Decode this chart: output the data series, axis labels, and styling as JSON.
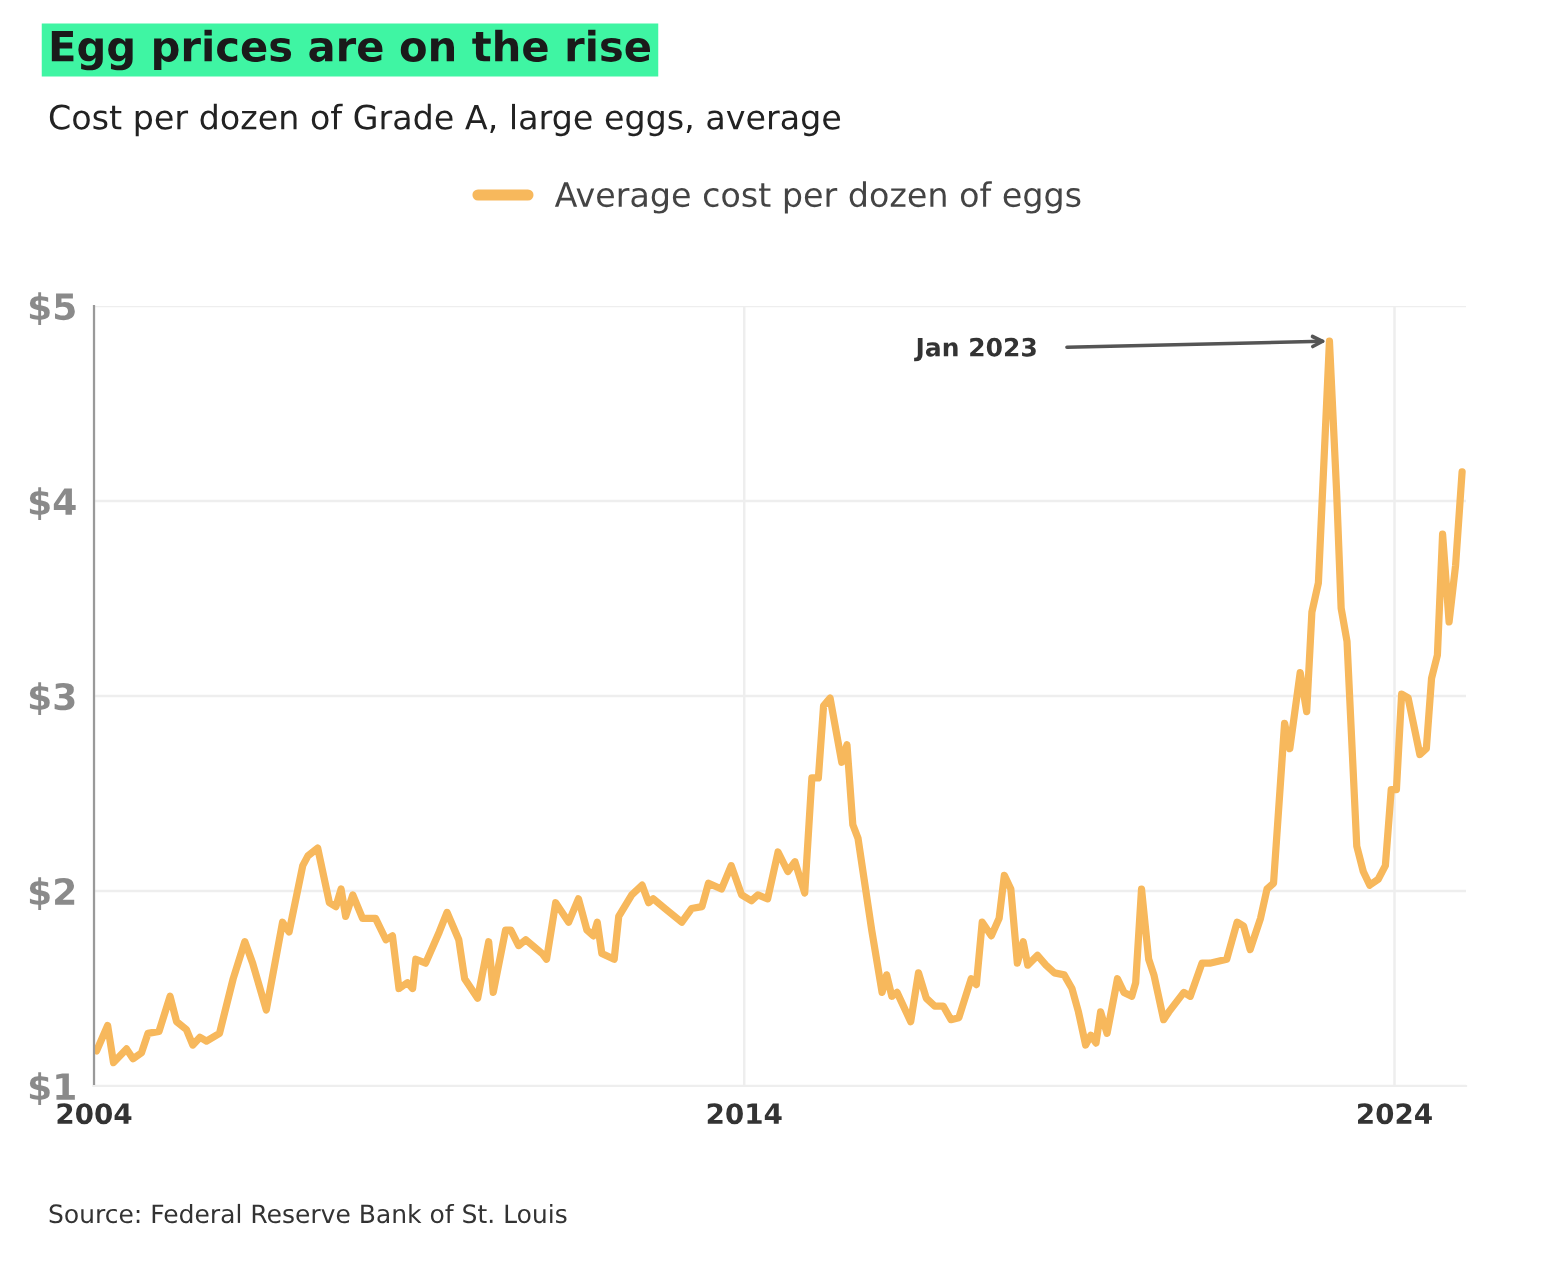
{
  "chart_data": {
    "type": "line",
    "title": "Egg prices are on the rise",
    "subtitle": "Cost per dozen of Grade A, large eggs, average",
    "x": [
      2004.04,
      2004.21,
      2004.3,
      2004.5,
      2004.6,
      2004.73,
      2004.83,
      2005.0,
      2005.17,
      2005.27,
      2005.42,
      2005.52,
      2005.63,
      2005.73,
      2005.93,
      2006.14,
      2006.32,
      2006.44,
      2006.65,
      2006.9,
      2007.0,
      2007.21,
      2007.29,
      2007.44,
      2007.62,
      2007.72,
      2007.8,
      2007.87,
      2007.98,
      2008.13,
      2008.33,
      2008.49,
      2008.59,
      2008.69,
      2008.82,
      2008.9,
      2008.95,
      2009.1,
      2009.31,
      2009.43,
      2009.61,
      2009.7,
      2009.9,
      2010.07,
      2010.14,
      2010.33,
      2010.41,
      2010.53,
      2010.64,
      2010.89,
      2010.96,
      2011.1,
      2011.3,
      2011.45,
      2011.58,
      2011.68,
      2011.74,
      2011.81,
      2012.0,
      2012.07,
      2012.27,
      2012.43,
      2012.53,
      2012.6,
      2012.78,
      2013.04,
      2013.19,
      2013.35,
      2013.45,
      2013.65,
      2013.8,
      2013.96,
      2014.11,
      2014.21,
      2014.36,
      2014.52,
      2014.67,
      2014.78,
      2014.93,
      2015.04,
      2015.14,
      2015.22,
      2015.32,
      2015.5,
      2015.58,
      2015.67,
      2015.75,
      2015.96,
      2016.12,
      2016.19,
      2016.27,
      2016.35,
      2016.56,
      2016.68,
      2016.8,
      2016.93,
      2017.06,
      2017.18,
      2017.3,
      2017.49,
      2017.57,
      2017.66,
      2017.8,
      2017.92,
      2018.0,
      2018.1,
      2018.2,
      2018.29,
      2018.36,
      2018.51,
      2018.64,
      2018.77,
      2018.92,
      2019.04,
      2019.14,
      2019.25,
      2019.33,
      2019.41,
      2019.48,
      2019.58,
      2019.74,
      2019.84,
      2019.96,
      2020.02,
      2020.11,
      2020.22,
      2020.3,
      2020.45,
      2020.53,
      2020.76,
      2020.86,
      2021.04,
      2021.16,
      2021.42,
      2021.58,
      2021.68,
      2021.78,
      2021.94,
      2022.04,
      2022.14,
      2022.31,
      2022.39,
      2022.55,
      2022.65,
      2022.73,
      2022.83,
      2023.0,
      2023.11,
      2023.18,
      2023.27,
      2023.42,
      2023.52,
      2023.62,
      2023.75,
      2023.86,
      2023.95,
      2024.03,
      2024.11,
      2024.21,
      2024.39,
      2024.49,
      2024.57,
      2024.66,
      2024.74,
      2024.84,
      2024.94,
      2025.04
    ],
    "series": [
      {
        "name": "Average cost per dozen of eggs",
        "color": "#f7b85c",
        "values": [
          1.18,
          1.31,
          1.12,
          1.19,
          1.14,
          1.17,
          1.27,
          1.28,
          1.46,
          1.33,
          1.29,
          1.21,
          1.25,
          1.23,
          1.27,
          1.55,
          1.74,
          1.63,
          1.39,
          1.84,
          1.79,
          2.13,
          2.18,
          2.22,
          1.94,
          1.92,
          2.01,
          1.87,
          1.98,
          1.86,
          1.86,
          1.75,
          1.77,
          1.5,
          1.53,
          1.5,
          1.65,
          1.63,
          1.79,
          1.89,
          1.75,
          1.55,
          1.45,
          1.74,
          1.48,
          1.8,
          1.8,
          1.72,
          1.75,
          1.68,
          1.65,
          1.94,
          1.84,
          1.96,
          1.8,
          1.77,
          1.84,
          1.68,
          1.65,
          1.87,
          1.98,
          2.03,
          1.94,
          1.96,
          1.91,
          1.84,
          1.91,
          1.92,
          2.04,
          2.01,
          2.13,
          1.98,
          1.95,
          1.98,
          1.96,
          2.2,
          2.1,
          2.15,
          1.99,
          2.58,
          2.58,
          2.95,
          2.99,
          2.66,
          2.75,
          2.34,
          2.27,
          1.8,
          1.48,
          1.57,
          1.46,
          1.48,
          1.33,
          1.58,
          1.45,
          1.41,
          1.41,
          1.34,
          1.35,
          1.55,
          1.52,
          1.84,
          1.77,
          1.86,
          2.08,
          2.01,
          1.63,
          1.74,
          1.62,
          1.67,
          1.62,
          1.58,
          1.57,
          1.5,
          1.38,
          1.21,
          1.26,
          1.22,
          1.38,
          1.27,
          1.55,
          1.48,
          1.46,
          1.53,
          2.01,
          1.65,
          1.57,
          1.34,
          1.38,
          1.48,
          1.46,
          1.63,
          1.63,
          1.65,
          1.84,
          1.82,
          1.7,
          1.86,
          2.01,
          2.04,
          2.86,
          2.73,
          3.12,
          2.92,
          3.43,
          3.58,
          4.82,
          4.05,
          3.45,
          3.28,
          2.23,
          2.1,
          2.03,
          2.06,
          2.13,
          2.52,
          2.52,
          3.01,
          2.99,
          2.7,
          2.73,
          3.09,
          3.21,
          3.83,
          3.38,
          3.67,
          4.15
        ]
      }
    ],
    "xlim": [
      2004,
      2025.1
    ],
    "xticks": [
      2004,
      2014,
      2024
    ],
    "ylim": [
      1,
      5
    ],
    "yticks": [
      {
        "value": 1,
        "label": "$1"
      },
      {
        "value": 2,
        "label": "$2"
      },
      {
        "value": 3,
        "label": "$3"
      },
      {
        "value": 4,
        "label": "$4"
      },
      {
        "value": 5,
        "label": "$5"
      }
    ],
    "grid": true,
    "legend": "top",
    "marker": "none",
    "line_style": "solid",
    "annotations": [
      {
        "text": "Jan 2023",
        "x": 2023.0,
        "y": 4.82
      },
      "Source: Federal Reserve Bank of St. Louis"
    ]
  }
}
